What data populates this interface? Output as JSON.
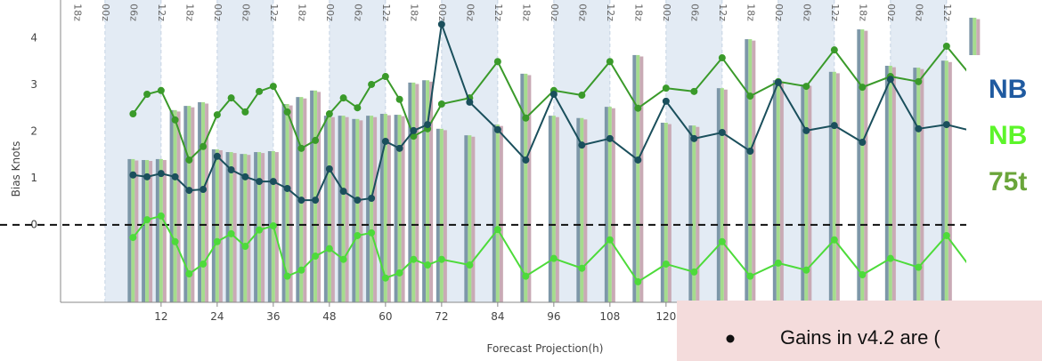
{
  "chart_data": {
    "type": "combo",
    "x_label": "Forecast Projection(h)",
    "y_label": "Bias Knots",
    "xlim": [
      -9.5,
      194.7
    ],
    "ylim": [
      -1.66,
      4.82
    ],
    "xticks": [
      12,
      24,
      36,
      48,
      60,
      72,
      84,
      96,
      108,
      120
    ],
    "yticks": [
      0,
      1,
      2,
      3,
      4
    ],
    "hline": 0,
    "bands": [
      [
        0,
        12
      ],
      [
        24,
        36
      ],
      [
        48,
        60
      ],
      [
        72,
        84
      ],
      [
        96,
        108
      ],
      [
        120,
        132
      ],
      [
        144,
        156
      ],
      [
        168,
        180
      ]
    ],
    "time_axis": {
      "x": [
        -6,
        0,
        6,
        12,
        18,
        24,
        30,
        36,
        42,
        48,
        54,
        60,
        66,
        72,
        78,
        84,
        90,
        96,
        102,
        108,
        114,
        120,
        126,
        132,
        138,
        144,
        150,
        156,
        162,
        168,
        174,
        180
      ],
      "labels": [
        "18z",
        "00z",
        "06z",
        "12z",
        "18z",
        "00z",
        "06z",
        "12z",
        "18z",
        "00z",
        "06z",
        "12z",
        "18z",
        "00z",
        "06z",
        "12z",
        "18z",
        "00z",
        "06z",
        "12z",
        "18z",
        "00z",
        "06z",
        "12z",
        "18z",
        "00z",
        "06z",
        "12z",
        "18z",
        "00z",
        "06z",
        "12z"
      ]
    },
    "x": [
      6,
      9,
      12,
      15,
      18,
      21,
      24,
      27,
      30,
      33,
      36,
      39,
      42,
      45,
      48,
      51,
      54,
      57,
      60,
      63,
      66,
      69,
      72,
      78,
      84,
      90,
      96,
      102,
      108,
      114,
      120,
      126,
      132,
      138,
      144,
      150,
      156,
      162,
      168,
      174,
      180,
      186
    ],
    "series": [
      {
        "kind": "bar",
        "color": "#7d97a8",
        "values": [
          1.41,
          1.39,
          1.41,
          2.46,
          2.55,
          2.63,
          1.62,
          1.56,
          1.52,
          1.56,
          1.58,
          2.59,
          2.74,
          2.88,
          2.34,
          2.34,
          2.27,
          2.34,
          2.38,
          2.36,
          3.05,
          3.1,
          2.06,
          1.92,
          2.15,
          3.24,
          2.34,
          2.29,
          2.53,
          3.64,
          2.19,
          2.13,
          2.93,
          3.98,
          3.1,
          3.01,
          3.28,
          4.19,
          3.41,
          3.37,
          3.52,
          4.44
        ]
      },
      {
        "kind": "bar",
        "color": "#a5dc8d",
        "values": [
          1.41,
          1.39,
          1.41,
          2.46,
          2.55,
          2.63,
          1.62,
          1.56,
          1.52,
          1.56,
          1.58,
          2.59,
          2.74,
          2.88,
          2.34,
          2.34,
          2.27,
          2.34,
          2.38,
          2.36,
          3.05,
          3.1,
          2.06,
          1.92,
          2.15,
          3.24,
          2.34,
          2.29,
          2.53,
          3.64,
          2.19,
          2.13,
          2.93,
          3.98,
          3.1,
          3.01,
          3.28,
          4.19,
          3.41,
          3.37,
          3.52,
          4.44
        ]
      },
      {
        "kind": "bar",
        "color": "#c9aab5",
        "values": [
          1.38,
          1.37,
          1.39,
          2.43,
          2.52,
          2.6,
          1.6,
          1.54,
          1.5,
          1.54,
          1.56,
          2.56,
          2.71,
          2.85,
          2.31,
          2.31,
          2.24,
          2.31,
          2.35,
          2.33,
          3.02,
          3.07,
          2.03,
          1.89,
          2.12,
          3.21,
          2.31,
          2.26,
          2.5,
          3.61,
          2.16,
          2.1,
          2.9,
          3.95,
          3.07,
          2.98,
          3.25,
          4.16,
          3.38,
          3.34,
          3.49,
          4.41
        ]
      },
      {
        "kind": "line",
        "color": "#3a9a2a",
        "values": [
          2.38,
          2.8,
          2.88,
          2.25,
          1.39,
          1.68,
          2.36,
          2.72,
          2.42,
          2.86,
          2.97,
          2.42,
          1.64,
          1.81,
          2.38,
          2.72,
          2.51,
          3.01,
          3.18,
          2.69,
          1.9,
          2.06,
          2.59,
          2.72,
          3.5,
          2.29,
          2.88,
          2.78,
          3.5,
          2.5,
          2.93,
          2.86,
          3.58,
          2.76,
          3.07,
          2.97,
          3.75,
          2.95,
          3.18,
          3.07,
          3.83,
          3.1
        ]
      },
      {
        "kind": "line",
        "color": "#1a4f5c",
        "values": [
          1.07,
          1.03,
          1.1,
          1.03,
          0.74,
          0.76,
          1.47,
          1.18,
          1.03,
          0.93,
          0.93,
          0.78,
          0.53,
          0.53,
          1.2,
          0.72,
          0.53,
          0.57,
          1.79,
          1.64,
          2.02,
          2.15,
          4.3,
          2.63,
          2.04,
          1.39,
          2.8,
          1.71,
          1.85,
          1.39,
          2.65,
          1.85,
          1.98,
          1.58,
          3.05,
          2.02,
          2.13,
          1.77,
          3.12,
          2.06,
          2.15,
          2.0
        ]
      },
      {
        "kind": "line",
        "color": "#4ddb3a",
        "values": [
          -0.27,
          0.11,
          0.19,
          -0.36,
          -1.05,
          -0.84,
          -0.36,
          -0.19,
          -0.46,
          -0.11,
          -0.02,
          -1.1,
          -0.97,
          -0.67,
          -0.51,
          -0.74,
          -0.23,
          -0.17,
          -1.14,
          -1.03,
          -0.74,
          -0.86,
          -0.74,
          -0.86,
          -0.1,
          -1.1,
          -0.72,
          -0.93,
          -0.32,
          -1.22,
          -0.84,
          -1.01,
          -0.36,
          -1.1,
          -0.82,
          -0.97,
          -0.32,
          -1.07,
          -0.72,
          -0.91,
          -0.23,
          -1.03
        ]
      }
    ],
    "side_panel": [
      {
        "text": "NB",
        "color": "#1f5aa0"
      },
      {
        "text": "NB",
        "color": "#5cf52a"
      },
      {
        "text": "75t",
        "color": "#6aa53a"
      }
    ],
    "note": "Gains in v4.2 are ("
  }
}
